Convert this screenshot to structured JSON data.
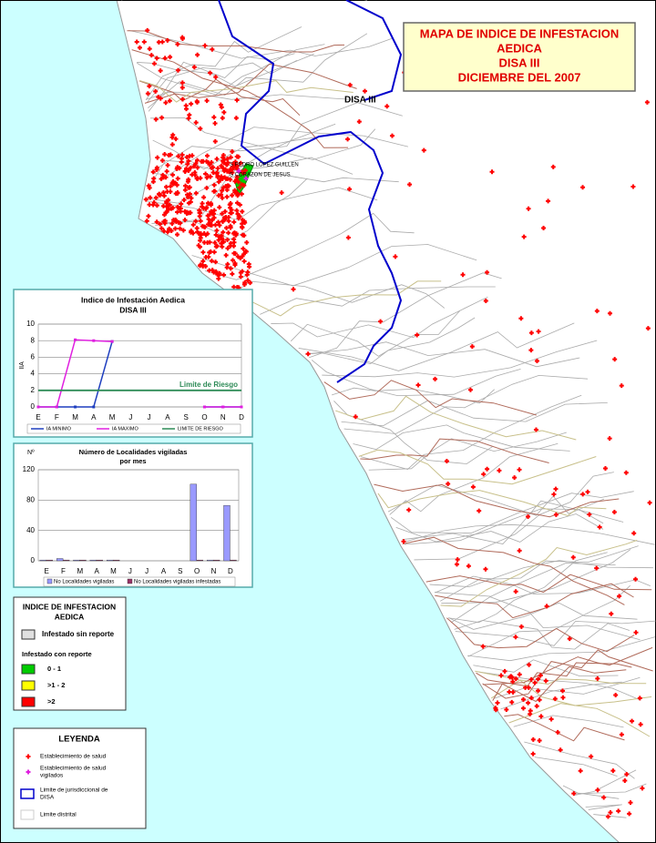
{
  "title": [
    "MAPA DE INDICE DE INFESTACION",
    "AEDICA",
    "DISA III",
    "DICIEMBRE DEL 2007"
  ],
  "map_labels": [
    "DISA III",
    "S PEDRO LOPEZ GUILLEN",
    "S CORAZON DE JESUS"
  ],
  "chart_data": [
    {
      "type": "line",
      "title": "Indice de Infestación Aedica",
      "subtitle": "DISA III",
      "y_label": "IIA",
      "categories": [
        "E",
        "F",
        "M",
        "A",
        "M",
        "J",
        "J",
        "A",
        "S",
        "O",
        "N",
        "D"
      ],
      "ylim": [
        0,
        10
      ],
      "yticks": [
        0,
        2,
        4,
        6,
        8,
        10
      ],
      "grid": true,
      "annotation": "Limite de Riesgo",
      "series": [
        {
          "name": "IA MINIMO",
          "color": "#1f3fbf",
          "values": [
            0,
            0,
            0,
            0,
            7.9,
            null,
            null,
            null,
            null,
            0,
            0,
            0
          ]
        },
        {
          "name": "IA MAXIMO",
          "color": "#e020e0",
          "values": [
            0,
            0,
            8.1,
            8,
            7.9,
            null,
            null,
            null,
            null,
            0,
            0,
            0
          ]
        },
        {
          "name": "LIMITE DE RIESGO",
          "color": "#2e8b57",
          "values": [
            2,
            2,
            2,
            2,
            2,
            2,
            2,
            2,
            2,
            2,
            2,
            2
          ]
        }
      ]
    },
    {
      "type": "bar",
      "title": [
        "Número de Localidades vigiladas",
        "por mes"
      ],
      "y_label": "Nº",
      "categories": [
        "E",
        "F",
        "M",
        "A",
        "M",
        "J",
        "J",
        "A",
        "S",
        "O",
        "N",
        "D"
      ],
      "ylim": [
        0,
        120
      ],
      "yticks": [
        0,
        40,
        80,
        120
      ],
      "grid": true,
      "series": [
        {
          "name": "No Localidades vigiladas",
          "color": "#9999ff",
          "values": [
            1,
            3,
            1,
            1,
            1,
            null,
            null,
            null,
            null,
            101,
            1,
            73
          ]
        },
        {
          "name": "No Localidades vigiladas infestadas",
          "color": "#993366",
          "values": [
            1,
            1,
            1,
            1,
            1,
            null,
            null,
            null,
            null,
            1,
            1,
            1
          ]
        }
      ]
    }
  ],
  "index_legend": {
    "title": [
      "INDICE DE INFESTACION",
      "AEDICA"
    ],
    "items": [
      {
        "label": "Infestado sin reporte",
        "color": "#e0e0e0"
      }
    ],
    "subtitle": "Infestado con reporte",
    "classes": [
      {
        "label": "0 - 1",
        "color": "#00cc00"
      },
      {
        "label": ">1 - 2",
        "color": "#ffff00"
      },
      {
        "label": ">2",
        "color": "#ff0000"
      }
    ]
  },
  "legend": {
    "title": "LEYENDA",
    "items": [
      [
        "Establecimiento de salud"
      ],
      [
        "Establecimiento de salud",
        "vigilados"
      ],
      [
        "Limite de jurisdiccional de",
        "DISA"
      ],
      [
        "Limite distrital"
      ]
    ]
  }
}
